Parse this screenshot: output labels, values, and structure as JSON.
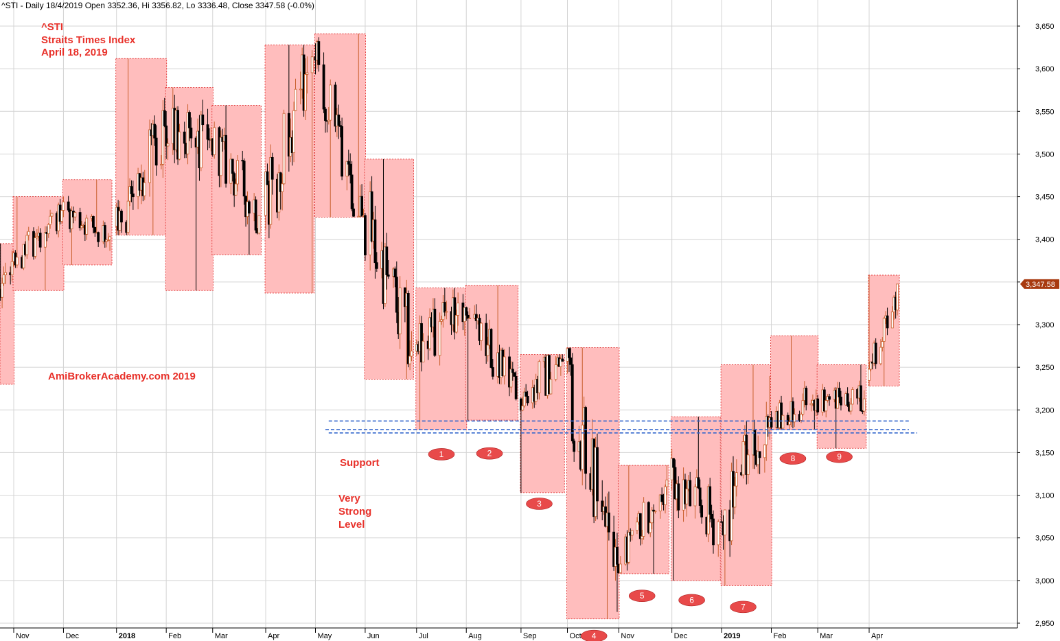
{
  "header": {
    "text": "^STI - Daily 18/4/2019 Open 3352.36, Hi 3356.82, Lo 3336.48, Close 3347.58 (-0.0%)"
  },
  "title_block": {
    "line1": "^STI",
    "line2": "Straits Times Index",
    "line3": "April 18, 2019"
  },
  "watermark": "AmiBrokerAcademy.com  2019",
  "annotations": {
    "support": "Support",
    "very_strong": [
      "Very",
      "Strong",
      "Level"
    ]
  },
  "colors": {
    "annotation_red": "#e8312a",
    "box_fill": "#ffbdbd",
    "box_border": "#dd2222",
    "badge": "#e84a4a",
    "support_line": "#3366cc",
    "candle_up": "#c9602e",
    "candle_down": "#000000",
    "last_price_tag": "#a83a10"
  },
  "chart_data": {
    "type": "candlestick",
    "symbol": "^STI",
    "ylim": [
      2940,
      3670
    ],
    "yticks": [
      2950,
      3000,
      3050,
      3100,
      3150,
      3200,
      3250,
      3300,
      3350,
      3400,
      3450,
      3500,
      3550,
      3600,
      3650
    ],
    "ytick_labels": [
      "2,950",
      "3,000",
      "3,050",
      "3,100",
      "3,150",
      "3,200",
      "3,250",
      "3,300",
      "3,350",
      "3,400",
      "3,450",
      "3,500",
      "3,550",
      "3,600",
      "3,650"
    ],
    "x_start": "2017-10-10",
    "x_end": "2019-05-15",
    "month_ticks": [
      {
        "date": "2017-11-01",
        "label": "Nov",
        "bold": false
      },
      {
        "date": "2017-12-01",
        "label": "Dec",
        "bold": false
      },
      {
        "date": "2018-01-02",
        "label": "2018",
        "bold": true
      },
      {
        "date": "2018-02-01",
        "label": "Feb",
        "bold": false
      },
      {
        "date": "2018-03-01",
        "label": "Mar",
        "bold": false
      },
      {
        "date": "2018-04-02",
        "label": "Apr",
        "bold": false
      },
      {
        "date": "2018-05-02",
        "label": "May",
        "bold": false
      },
      {
        "date": "2018-06-01",
        "label": "Jun",
        "bold": false
      },
      {
        "date": "2018-07-02",
        "label": "Jul",
        "bold": false
      },
      {
        "date": "2018-08-01",
        "label": "Aug",
        "bold": false
      },
      {
        "date": "2018-09-03",
        "label": "Sep",
        "bold": false
      },
      {
        "date": "2018-10-01",
        "label": "Oct",
        "bold": false
      },
      {
        "date": "2018-11-01",
        "label": "Nov",
        "bold": false
      },
      {
        "date": "2018-12-03",
        "label": "Dec",
        "bold": false
      },
      {
        "date": "2019-01-02",
        "label": "2019",
        "bold": true
      },
      {
        "date": "2019-02-01",
        "label": "Feb",
        "bold": false
      },
      {
        "date": "2019-03-01",
        "label": "Mar",
        "bold": false
      },
      {
        "date": "2019-04-01",
        "label": "Apr",
        "bold": false
      }
    ],
    "monthly_ranges": [
      {
        "month": "2017-10",
        "start": "2017-10-10",
        "end": "2017-10-31",
        "high": 3395,
        "low": 3230
      },
      {
        "month": "2017-11",
        "start": "2017-11-01",
        "end": "2017-11-30",
        "high": 3450,
        "low": 3340
      },
      {
        "month": "2017-12",
        "start": "2017-12-01",
        "end": "2017-12-29",
        "high": 3470,
        "low": 3370
      },
      {
        "month": "2018-01",
        "start": "2018-01-02",
        "end": "2018-01-31",
        "high": 3612,
        "low": 3405
      },
      {
        "month": "2018-02",
        "start": "2018-02-01",
        "end": "2018-02-28",
        "high": 3578,
        "low": 3340
      },
      {
        "month": "2018-03",
        "start": "2018-03-01",
        "end": "2018-03-29",
        "high": 3557,
        "low": 3382
      },
      {
        "month": "2018-04",
        "start": "2018-04-02",
        "end": "2018-04-30",
        "high": 3628,
        "low": 3337
      },
      {
        "month": "2018-05",
        "start": "2018-05-02",
        "end": "2018-05-31",
        "high": 3641,
        "low": 3426
      },
      {
        "month": "2018-06",
        "start": "2018-06-01",
        "end": "2018-06-29",
        "high": 3494,
        "low": 3236
      },
      {
        "month": "2018-07",
        "start": "2018-07-02",
        "end": "2018-07-31",
        "high": 3343,
        "low": 3177
      },
      {
        "month": "2018-08",
        "start": "2018-08-01",
        "end": "2018-08-31",
        "high": 3346,
        "low": 3188
      },
      {
        "month": "2018-09",
        "start": "2018-09-03",
        "end": "2018-09-28",
        "high": 3265,
        "low": 3103
      },
      {
        "month": "2018-10",
        "start": "2018-10-01",
        "end": "2018-10-31",
        "high": 3273,
        "low": 2955
      },
      {
        "month": "2018-11",
        "start": "2018-11-01",
        "end": "2018-11-30",
        "high": 3135,
        "low": 3008
      },
      {
        "month": "2018-12",
        "start": "2018-12-03",
        "end": "2018-12-31",
        "high": 3192,
        "low": 3000
      },
      {
        "month": "2019-01",
        "start": "2019-01-02",
        "end": "2019-01-31",
        "high": 3253,
        "low": 2994
      },
      {
        "month": "2019-02",
        "start": "2019-02-01",
        "end": "2019-02-28",
        "high": 3287,
        "low": 3177
      },
      {
        "month": "2019-03",
        "start": "2019-03-01",
        "end": "2019-03-29",
        "high": 3253,
        "low": 3155
      },
      {
        "month": "2019-04",
        "start": "2019-04-01",
        "end": "2019-04-18",
        "high": 3358,
        "low": 3228
      }
    ],
    "monthly_closes": [
      3374,
      3434,
      3403,
      3533,
      3518,
      3428,
      3614,
      3428,
      3269,
      3320,
      3213,
      3257,
      3019,
      3118,
      3069,
      3191,
      3213,
      3213,
      3347.58
    ],
    "support_lines": [
      {
        "start": "2018-05-10",
        "end": "2019-04-25",
        "value": 3187
      },
      {
        "start": "2018-05-08",
        "end": "2019-04-25",
        "value": 3177
      },
      {
        "start": "2018-05-10",
        "end": "2019-04-30",
        "value": 3173
      }
    ],
    "markers": [
      {
        "label": "1",
        "date": "2018-07-17",
        "value": 3148
      },
      {
        "label": "2",
        "date": "2018-08-15",
        "value": 3149
      },
      {
        "label": "3",
        "date": "2018-09-14",
        "value": 3090
      },
      {
        "label": "4",
        "date": "2018-10-17",
        "value": 2935
      },
      {
        "label": "5",
        "date": "2018-11-15",
        "value": 2982
      },
      {
        "label": "6",
        "date": "2018-12-15",
        "value": 2977
      },
      {
        "label": "7",
        "date": "2019-01-15",
        "value": 2969
      },
      {
        "label": "8",
        "date": "2019-02-14",
        "value": 3143
      },
      {
        "label": "9",
        "date": "2019-03-14",
        "value": 3145
      }
    ],
    "last_close": 3347.58,
    "last_close_label": "3,347.58"
  }
}
